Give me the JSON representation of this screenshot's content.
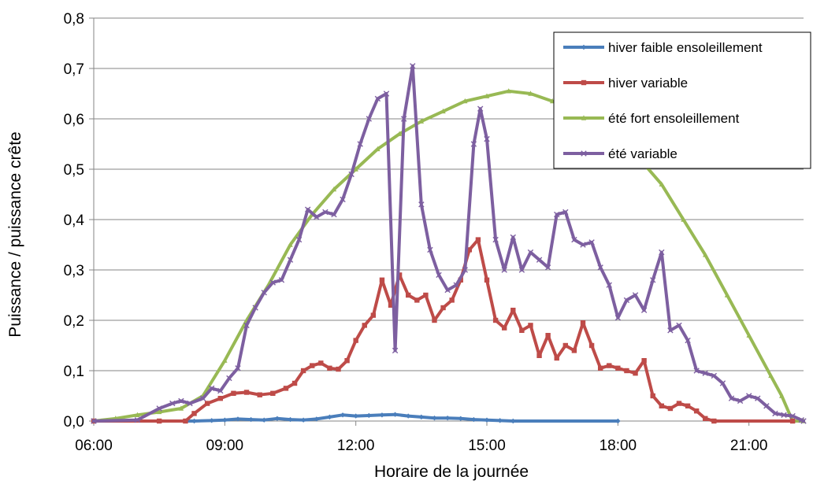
{
  "chart_data": {
    "type": "line",
    "xlabel": "Horaire de la journée",
    "ylabel": "Puissance / puissance crête",
    "x_unit": "hours",
    "xlim": [
      6.0,
      22.25
    ],
    "ylim": [
      0.0,
      0.8
    ],
    "x_ticks": [
      {
        "value": 6,
        "label": "06:00"
      },
      {
        "value": 9,
        "label": "09:00"
      },
      {
        "value": 12,
        "label": "12:00"
      },
      {
        "value": 15,
        "label": "15:00"
      },
      {
        "value": 18,
        "label": "18:00"
      },
      {
        "value": 21,
        "label": "21:00"
      }
    ],
    "y_ticks": [
      {
        "value": 0.0,
        "label": "0,0"
      },
      {
        "value": 0.1,
        "label": "0,1"
      },
      {
        "value": 0.2,
        "label": "0,2"
      },
      {
        "value": 0.3,
        "label": "0,3"
      },
      {
        "value": 0.4,
        "label": "0,4"
      },
      {
        "value": 0.5,
        "label": "0,5"
      },
      {
        "value": 0.6,
        "label": "0,6"
      },
      {
        "value": 0.7,
        "label": "0,7"
      },
      {
        "value": 0.8,
        "label": "0,8"
      }
    ],
    "grid": "horizontal",
    "legend_position": "top-right",
    "series": [
      {
        "name": "hiver faible ensoleillement",
        "color": "#4a7ebb",
        "marker": "diamond",
        "points": [
          [
            6.0,
            0.0
          ],
          [
            8.3,
            0.0
          ],
          [
            8.7,
            0.001
          ],
          [
            9.0,
            0.002
          ],
          [
            9.3,
            0.004
          ],
          [
            9.6,
            0.003
          ],
          [
            9.9,
            0.002
          ],
          [
            10.2,
            0.005
          ],
          [
            10.5,
            0.003
          ],
          [
            10.8,
            0.002
          ],
          [
            11.1,
            0.004
          ],
          [
            11.4,
            0.008
          ],
          [
            11.7,
            0.012
          ],
          [
            12.0,
            0.01
          ],
          [
            12.3,
            0.011
          ],
          [
            12.6,
            0.012
          ],
          [
            12.9,
            0.013
          ],
          [
            13.2,
            0.01
          ],
          [
            13.5,
            0.008
          ],
          [
            13.8,
            0.006
          ],
          [
            14.1,
            0.006
          ],
          [
            14.4,
            0.005
          ],
          [
            14.7,
            0.003
          ],
          [
            15.0,
            0.002
          ],
          [
            15.3,
            0.001
          ],
          [
            15.6,
            0.0
          ],
          [
            18.0,
            0.0
          ]
        ]
      },
      {
        "name": "hiver variable",
        "color": "#be4b48",
        "marker": "square",
        "points": [
          [
            6.0,
            0.0
          ],
          [
            7.5,
            0.0
          ],
          [
            8.1,
            0.0
          ],
          [
            8.3,
            0.015
          ],
          [
            8.6,
            0.035
          ],
          [
            8.9,
            0.045
          ],
          [
            9.2,
            0.055
          ],
          [
            9.5,
            0.057
          ],
          [
            9.8,
            0.052
          ],
          [
            10.1,
            0.055
          ],
          [
            10.4,
            0.065
          ],
          [
            10.6,
            0.075
          ],
          [
            10.8,
            0.1
          ],
          [
            11.0,
            0.11
          ],
          [
            11.2,
            0.115
          ],
          [
            11.4,
            0.105
          ],
          [
            11.6,
            0.103
          ],
          [
            11.8,
            0.12
          ],
          [
            12.0,
            0.16
          ],
          [
            12.2,
            0.19
          ],
          [
            12.4,
            0.21
          ],
          [
            12.6,
            0.28
          ],
          [
            12.8,
            0.23
          ],
          [
            13.0,
            0.29
          ],
          [
            13.2,
            0.25
          ],
          [
            13.4,
            0.24
          ],
          [
            13.6,
            0.25
          ],
          [
            13.8,
            0.2
          ],
          [
            14.0,
            0.225
          ],
          [
            14.2,
            0.24
          ],
          [
            14.4,
            0.28
          ],
          [
            14.6,
            0.34
          ],
          [
            14.8,
            0.36
          ],
          [
            15.0,
            0.28
          ],
          [
            15.2,
            0.2
          ],
          [
            15.4,
            0.185
          ],
          [
            15.6,
            0.22
          ],
          [
            15.8,
            0.18
          ],
          [
            16.0,
            0.19
          ],
          [
            16.2,
            0.13
          ],
          [
            16.4,
            0.17
          ],
          [
            16.6,
            0.125
          ],
          [
            16.8,
            0.15
          ],
          [
            17.0,
            0.14
          ],
          [
            17.2,
            0.195
          ],
          [
            17.4,
            0.15
          ],
          [
            17.6,
            0.105
          ],
          [
            17.8,
            0.11
          ],
          [
            18.0,
            0.105
          ],
          [
            18.2,
            0.1
          ],
          [
            18.4,
            0.095
          ],
          [
            18.6,
            0.12
          ],
          [
            18.8,
            0.05
          ],
          [
            19.0,
            0.03
          ],
          [
            19.2,
            0.025
          ],
          [
            19.4,
            0.035
          ],
          [
            19.6,
            0.03
          ],
          [
            19.8,
            0.02
          ],
          [
            20.0,
            0.005
          ],
          [
            20.2,
            0.0
          ],
          [
            22.0,
            0.0
          ]
        ]
      },
      {
        "name": "été fort ensoleillement",
        "color": "#98b954",
        "marker": "triangle",
        "points": [
          [
            6.0,
            0.0
          ],
          [
            6.5,
            0.005
          ],
          [
            7.0,
            0.012
          ],
          [
            7.5,
            0.018
          ],
          [
            8.0,
            0.025
          ],
          [
            8.5,
            0.05
          ],
          [
            9.0,
            0.12
          ],
          [
            9.5,
            0.2
          ],
          [
            10.0,
            0.27
          ],
          [
            10.5,
            0.35
          ],
          [
            11.0,
            0.41
          ],
          [
            11.5,
            0.46
          ],
          [
            12.0,
            0.5
          ],
          [
            12.5,
            0.54
          ],
          [
            13.0,
            0.57
          ],
          [
            13.5,
            0.595
          ],
          [
            14.0,
            0.615
          ],
          [
            14.5,
            0.635
          ],
          [
            15.0,
            0.645
          ],
          [
            15.5,
            0.655
          ],
          [
            16.0,
            0.65
          ],
          [
            16.5,
            0.635
          ],
          [
            17.0,
            0.62
          ],
          [
            17.5,
            0.59
          ],
          [
            18.0,
            0.56
          ],
          [
            18.5,
            0.52
          ],
          [
            19.0,
            0.47
          ],
          [
            19.5,
            0.4
          ],
          [
            20.0,
            0.33
          ],
          [
            20.5,
            0.25
          ],
          [
            21.0,
            0.17
          ],
          [
            21.5,
            0.09
          ],
          [
            21.75,
            0.05
          ],
          [
            22.0,
            0.0
          ],
          [
            22.25,
            0.0
          ]
        ]
      },
      {
        "name": "été variable",
        "color": "#7d5fa0",
        "marker": "x",
        "points": [
          [
            6.0,
            0.0
          ],
          [
            7.0,
            0.002
          ],
          [
            7.5,
            0.025
          ],
          [
            7.8,
            0.035
          ],
          [
            8.0,
            0.04
          ],
          [
            8.2,
            0.035
          ],
          [
            8.5,
            0.045
          ],
          [
            8.7,
            0.065
          ],
          [
            8.9,
            0.06
          ],
          [
            9.1,
            0.085
          ],
          [
            9.3,
            0.105
          ],
          [
            9.5,
            0.19
          ],
          [
            9.7,
            0.225
          ],
          [
            9.9,
            0.255
          ],
          [
            10.1,
            0.275
          ],
          [
            10.3,
            0.28
          ],
          [
            10.5,
            0.32
          ],
          [
            10.7,
            0.36
          ],
          [
            10.9,
            0.42
          ],
          [
            11.1,
            0.405
          ],
          [
            11.3,
            0.415
          ],
          [
            11.5,
            0.41
          ],
          [
            11.7,
            0.44
          ],
          [
            11.9,
            0.49
          ],
          [
            12.1,
            0.55
          ],
          [
            12.3,
            0.6
          ],
          [
            12.5,
            0.64
          ],
          [
            12.7,
            0.65
          ],
          [
            12.9,
            0.14
          ],
          [
            13.1,
            0.6
          ],
          [
            13.3,
            0.705
          ],
          [
            13.5,
            0.43
          ],
          [
            13.7,
            0.34
          ],
          [
            13.9,
            0.29
          ],
          [
            14.1,
            0.26
          ],
          [
            14.3,
            0.27
          ],
          [
            14.5,
            0.3
          ],
          [
            14.7,
            0.55
          ],
          [
            14.85,
            0.62
          ],
          [
            15.0,
            0.56
          ],
          [
            15.2,
            0.36
          ],
          [
            15.4,
            0.3
          ],
          [
            15.6,
            0.365
          ],
          [
            15.8,
            0.3
          ],
          [
            16.0,
            0.335
          ],
          [
            16.2,
            0.32
          ],
          [
            16.4,
            0.305
          ],
          [
            16.6,
            0.41
          ],
          [
            16.8,
            0.415
          ],
          [
            17.0,
            0.36
          ],
          [
            17.2,
            0.35
          ],
          [
            17.4,
            0.355
          ],
          [
            17.6,
            0.305
          ],
          [
            17.8,
            0.27
          ],
          [
            18.0,
            0.205
          ],
          [
            18.2,
            0.24
          ],
          [
            18.4,
            0.25
          ],
          [
            18.6,
            0.22
          ],
          [
            18.8,
            0.28
          ],
          [
            19.0,
            0.335
          ],
          [
            19.2,
            0.18
          ],
          [
            19.4,
            0.19
          ],
          [
            19.6,
            0.16
          ],
          [
            19.8,
            0.1
          ],
          [
            20.0,
            0.095
          ],
          [
            20.2,
            0.09
          ],
          [
            20.4,
            0.075
          ],
          [
            20.6,
            0.045
          ],
          [
            20.8,
            0.04
          ],
          [
            21.0,
            0.05
          ],
          [
            21.2,
            0.045
          ],
          [
            21.4,
            0.03
          ],
          [
            21.6,
            0.015
          ],
          [
            21.8,
            0.012
          ],
          [
            22.0,
            0.01
          ],
          [
            22.2,
            0.002
          ],
          [
            22.25,
            0.0
          ]
        ]
      }
    ]
  }
}
